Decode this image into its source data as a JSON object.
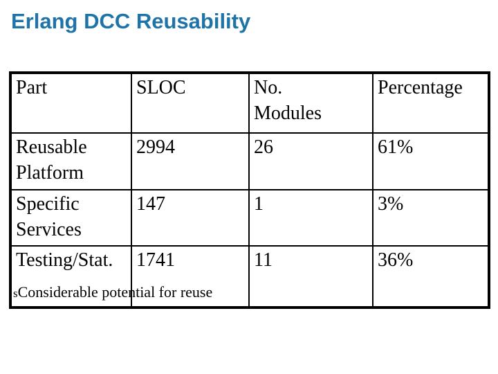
{
  "colors": {
    "title_blue": "#1E74A8",
    "highlight_red": "#B22222",
    "table_border": "#000000",
    "background": "#ffffff"
  },
  "title": "Erlang DCC Reusability",
  "table": {
    "headers": [
      "Part",
      "SLOC",
      "No.\nModules",
      "Percentage"
    ],
    "rows": [
      {
        "part": "Reusable\nPlatform",
        "sloc": "2994",
        "no_modules": "26",
        "percentage": "61%"
      },
      {
        "part": "Specific\nServices",
        "sloc": "147",
        "no_modules": "1",
        "percentage": "3%"
      },
      {
        "part": "Testing/Stat.",
        "sloc": "1741",
        "no_modules": "11",
        "percentage": "36%"
      }
    ]
  },
  "bullet": {
    "marker": "s",
    "text": "Considerable potential for reuse"
  }
}
